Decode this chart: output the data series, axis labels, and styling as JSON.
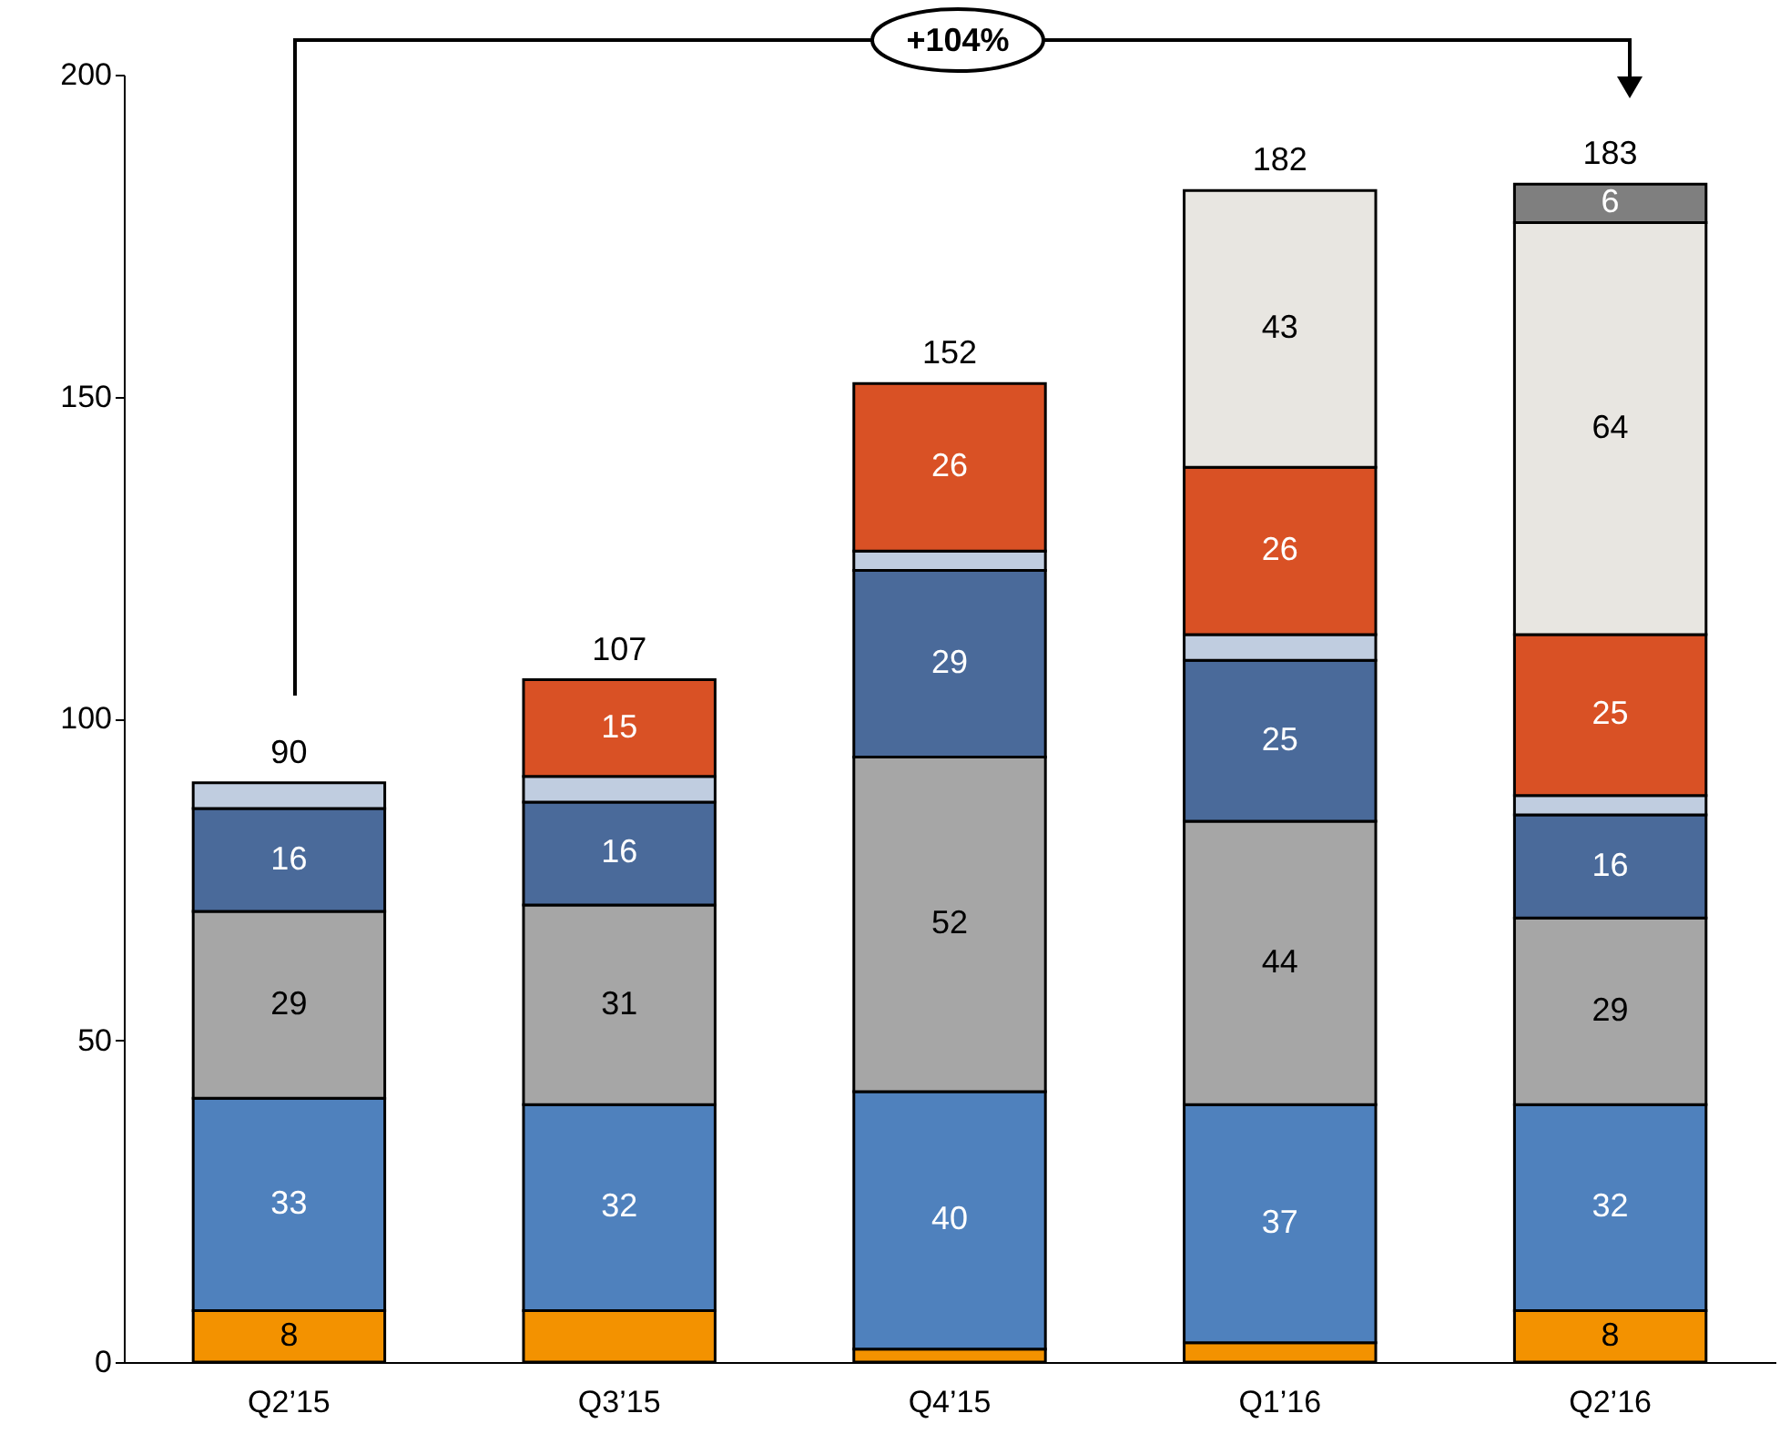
{
  "chart_data": {
    "type": "bar",
    "stacked": true,
    "categories": [
      "Q2’15",
      "Q3’15",
      "Q4’15",
      "Q1’16",
      "Q2’16"
    ],
    "series": [
      {
        "color": "#f39200",
        "values": [
          8,
          8,
          2,
          3,
          8
        ],
        "value_labels": [
          "8",
          null,
          null,
          null,
          "8"
        ]
      },
      {
        "color": "#4f81bd",
        "values": [
          33,
          32,
          40,
          37,
          32
        ],
        "value_labels": [
          "33",
          "32",
          "40",
          "37",
          "32"
        ]
      },
      {
        "color": "#a6a6a6",
        "values": [
          29,
          31,
          52,
          44,
          29
        ],
        "value_labels": [
          "29",
          "31",
          "52",
          "44",
          "29"
        ]
      },
      {
        "color": "#4a6a9a",
        "values": [
          16,
          16,
          29,
          25,
          16
        ],
        "value_labels": [
          "16",
          "16",
          "29",
          "25",
          "16"
        ]
      },
      {
        "color": "#c0cde0",
        "values": [
          4,
          4,
          3,
          4,
          3
        ],
        "value_labels": [
          null,
          null,
          null,
          null,
          null
        ]
      },
      {
        "color": "#d95125",
        "values": [
          null,
          15,
          26,
          26,
          25
        ],
        "value_labels": [
          null,
          "15",
          "26",
          "26",
          "25"
        ]
      },
      {
        "color": "#e8e6e1",
        "values": [
          null,
          null,
          null,
          43,
          64
        ],
        "value_labels": [
          null,
          null,
          null,
          "43",
          "64"
        ]
      },
      {
        "color": "#7f7f7f",
        "values": [
          null,
          null,
          null,
          null,
          6
        ],
        "value_labels": [
          null,
          null,
          null,
          null,
          "6"
        ]
      }
    ],
    "totals": [
      "90",
      "107",
      "152",
      "182",
      "183"
    ],
    "ylim": [
      0,
      200
    ],
    "yticks": [
      0,
      50,
      100,
      150,
      200
    ],
    "grid": false,
    "legend": false,
    "annotations": [
      "+104%"
    ]
  }
}
